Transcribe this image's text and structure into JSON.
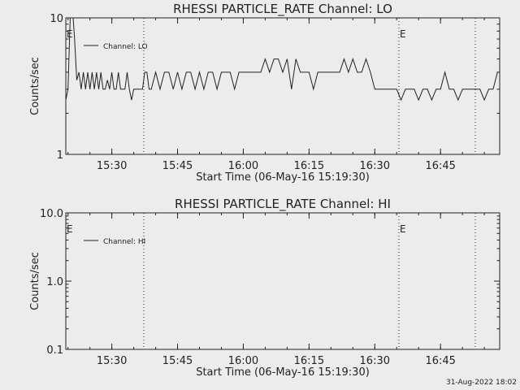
{
  "footer_timestamp": "31-Aug-2022 18:02",
  "chart_data": [
    {
      "type": "line",
      "title": "RHESSI PARTICLE_RATE Channel: LO",
      "xlabel": "Start Time (06-May-16 15:19:30)",
      "ylabel": "Counts/sec",
      "yscale": "log",
      "ylim": [
        1,
        10
      ],
      "ytick_labels": [
        "1",
        "10"
      ],
      "xlim": [
        "15:19:30",
        "16:58:30"
      ],
      "xtick_labels": [
        "15:30",
        "15:45",
        "16:00",
        "16:15",
        "16:30",
        "16:45"
      ],
      "legend": "top-left",
      "series": [
        {
          "name": "Channel: LO",
          "x": [
            "15:19:30",
            "15:20:00",
            "15:20:30",
            "15:21:00",
            "15:21:30",
            "15:22:00",
            "15:22:30",
            "15:23:00",
            "15:23:30",
            "15:24:00",
            "15:24:30",
            "15:25:00",
            "15:25:30",
            "15:26:00",
            "15:26:30",
            "15:27:00",
            "15:27:30",
            "15:28:00",
            "15:28:30",
            "15:29:00",
            "15:29:30",
            "15:30:00",
            "15:30:30",
            "15:31:00",
            "15:31:30",
            "15:32:00",
            "15:32:30",
            "15:33:00",
            "15:33:30",
            "15:34:00",
            "15:34:30",
            "15:35:00",
            "15:35:30",
            "15:36:00",
            "15:36:30",
            "15:37:00",
            "15:37:30",
            "15:38:00",
            "15:38:30",
            "15:39:00",
            "15:40:00",
            "15:41:00",
            "15:42:00",
            "15:43:00",
            "15:44:00",
            "15:45:00",
            "15:46:00",
            "15:47:00",
            "15:48:00",
            "15:49:00",
            "15:50:00",
            "15:51:00",
            "15:52:00",
            "15:53:00",
            "15:54:00",
            "15:55:00",
            "15:56:00",
            "15:57:00",
            "15:58:00",
            "15:59:00",
            "16:00:00",
            "16:01:00",
            "16:02:00",
            "16:03:00",
            "16:04:00",
            "16:05:00",
            "16:06:00",
            "16:07:00",
            "16:08:00",
            "16:09:00",
            "16:10:00",
            "16:11:00",
            "16:12:00",
            "16:13:00",
            "16:14:00",
            "16:15:00",
            "16:16:00",
            "16:17:00",
            "16:18:00",
            "16:19:00",
            "16:20:00",
            "16:21:00",
            "16:22:00",
            "16:23:00",
            "16:24:00",
            "16:25:00",
            "16:26:00",
            "16:27:00",
            "16:28:00",
            "16:29:00",
            "16:30:00",
            "16:31:00",
            "16:32:00",
            "16:33:00",
            "16:34:00",
            "16:35:00",
            "16:36:00",
            "16:37:00",
            "16:38:00",
            "16:39:00",
            "16:40:00",
            "16:41:00",
            "16:42:00",
            "16:43:00",
            "16:44:00",
            "16:45:00",
            "16:46:00",
            "16:47:00",
            "16:48:00",
            "16:49:00",
            "16:50:00",
            "16:51:00",
            "16:52:00",
            "16:53:00",
            "16:54:00",
            "16:55:00",
            "16:56:00",
            "16:57:00",
            "16:58:00"
          ],
          "y": [
            2.5,
            3,
            10,
            12,
            7,
            3.5,
            4,
            3,
            4,
            3,
            4,
            3,
            4,
            3,
            4,
            3,
            4,
            3,
            3,
            3.5,
            3,
            4,
            3,
            3,
            4,
            3,
            3,
            3,
            4,
            3,
            2.5,
            3,
            3,
            3,
            3,
            3,
            4,
            4,
            3,
            3,
            4,
            3,
            4,
            4,
            3,
            4,
            3,
            4,
            4,
            3,
            4,
            3,
            4,
            4,
            3,
            4,
            4,
            4,
            3,
            4,
            4,
            4,
            4,
            4,
            4,
            5,
            4,
            5,
            5,
            4,
            5,
            3,
            5,
            4,
            4,
            4,
            3,
            4,
            4,
            4,
            4,
            4,
            4,
            5,
            4,
            5,
            4,
            4,
            5,
            4,
            3,
            3,
            3,
            3,
            3,
            3,
            2.5,
            3,
            3,
            3,
            2.5,
            3,
            3,
            2.5,
            3,
            3,
            4,
            3,
            3,
            2.5,
            3,
            3,
            3,
            3,
            3,
            2.5,
            3,
            3,
            4
          ]
        }
      ],
      "annotations": [
        "E",
        "E"
      ]
    },
    {
      "type": "line",
      "title": "RHESSI PARTICLE_RATE Channel: HI",
      "xlabel": "Start Time (06-May-16 15:19:30)",
      "ylabel": "Counts/sec",
      "yscale": "log",
      "ylim": [
        0.1,
        10
      ],
      "ytick_labels": [
        "0.1",
        "1.0",
        "10.0"
      ],
      "xlim": [
        "15:19:30",
        "16:58:30"
      ],
      "xtick_labels": [
        "15:30",
        "15:45",
        "16:00",
        "16:15",
        "16:30",
        "16:45"
      ],
      "legend": "top-left",
      "series": [
        {
          "name": "Channel: HI",
          "x": [],
          "y": []
        }
      ],
      "annotations": [
        "E",
        "E"
      ]
    }
  ]
}
